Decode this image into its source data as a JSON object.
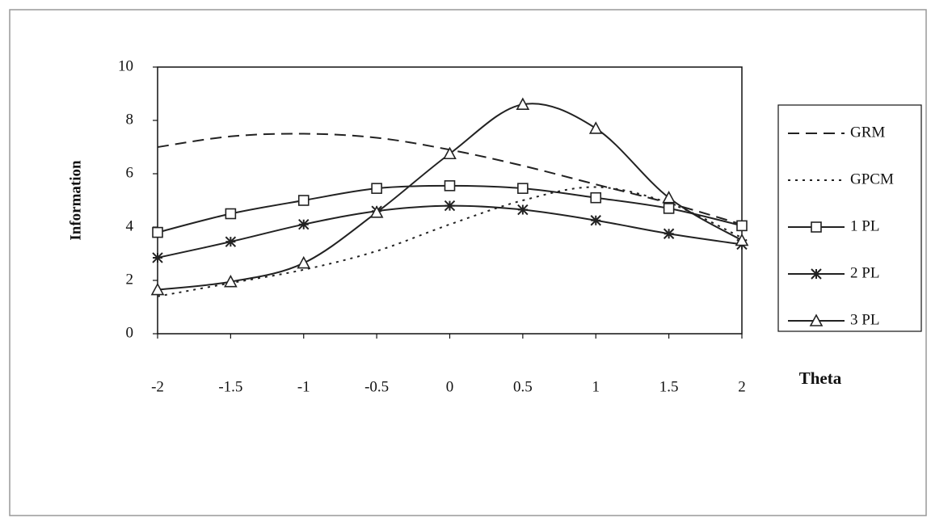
{
  "chart_data": {
    "type": "line",
    "x": [
      -2,
      -1.5,
      -1,
      -0.5,
      0,
      0.5,
      1,
      1.5,
      2
    ],
    "x_label": "Theta",
    "y_label": "Information",
    "xlim": [
      -2,
      2
    ],
    "xticks": [
      -2,
      -1.5,
      -1,
      -0.5,
      0,
      0.5,
      1,
      1.5,
      2
    ],
    "ylim": [
      0,
      10
    ],
    "yticks": [
      0,
      2,
      4,
      6,
      8,
      10
    ],
    "legend": "right",
    "series": [
      {
        "name": "GRM",
        "color": "#222222",
        "dash": "dashed",
        "marker": "none",
        "values": [
          7.0,
          7.4,
          7.5,
          7.35,
          6.9,
          6.3,
          5.6,
          4.9,
          4.1
        ]
      },
      {
        "name": "GPCM",
        "color": "#222222",
        "dash": "dotted",
        "marker": "none",
        "values": [
          1.4,
          1.9,
          2.4,
          3.1,
          4.1,
          5.0,
          5.5,
          4.9,
          3.6
        ]
      },
      {
        "name": "1 PL",
        "color": "#222222",
        "dash": "solid",
        "marker": "square",
        "values": [
          3.8,
          4.5,
          5.0,
          5.45,
          5.55,
          5.45,
          5.1,
          4.7,
          4.05
        ]
      },
      {
        "name": "2 PL",
        "color": "#222222",
        "dash": "solid",
        "marker": "asterisk",
        "values": [
          2.85,
          3.45,
          4.1,
          4.6,
          4.8,
          4.65,
          4.25,
          3.75,
          3.35
        ]
      },
      {
        "name": "3 PL",
        "color": "#222222",
        "dash": "solid",
        "marker": "triangle",
        "values": [
          1.65,
          1.95,
          2.65,
          4.55,
          6.75,
          8.6,
          7.7,
          5.1,
          3.5
        ]
      }
    ]
  }
}
